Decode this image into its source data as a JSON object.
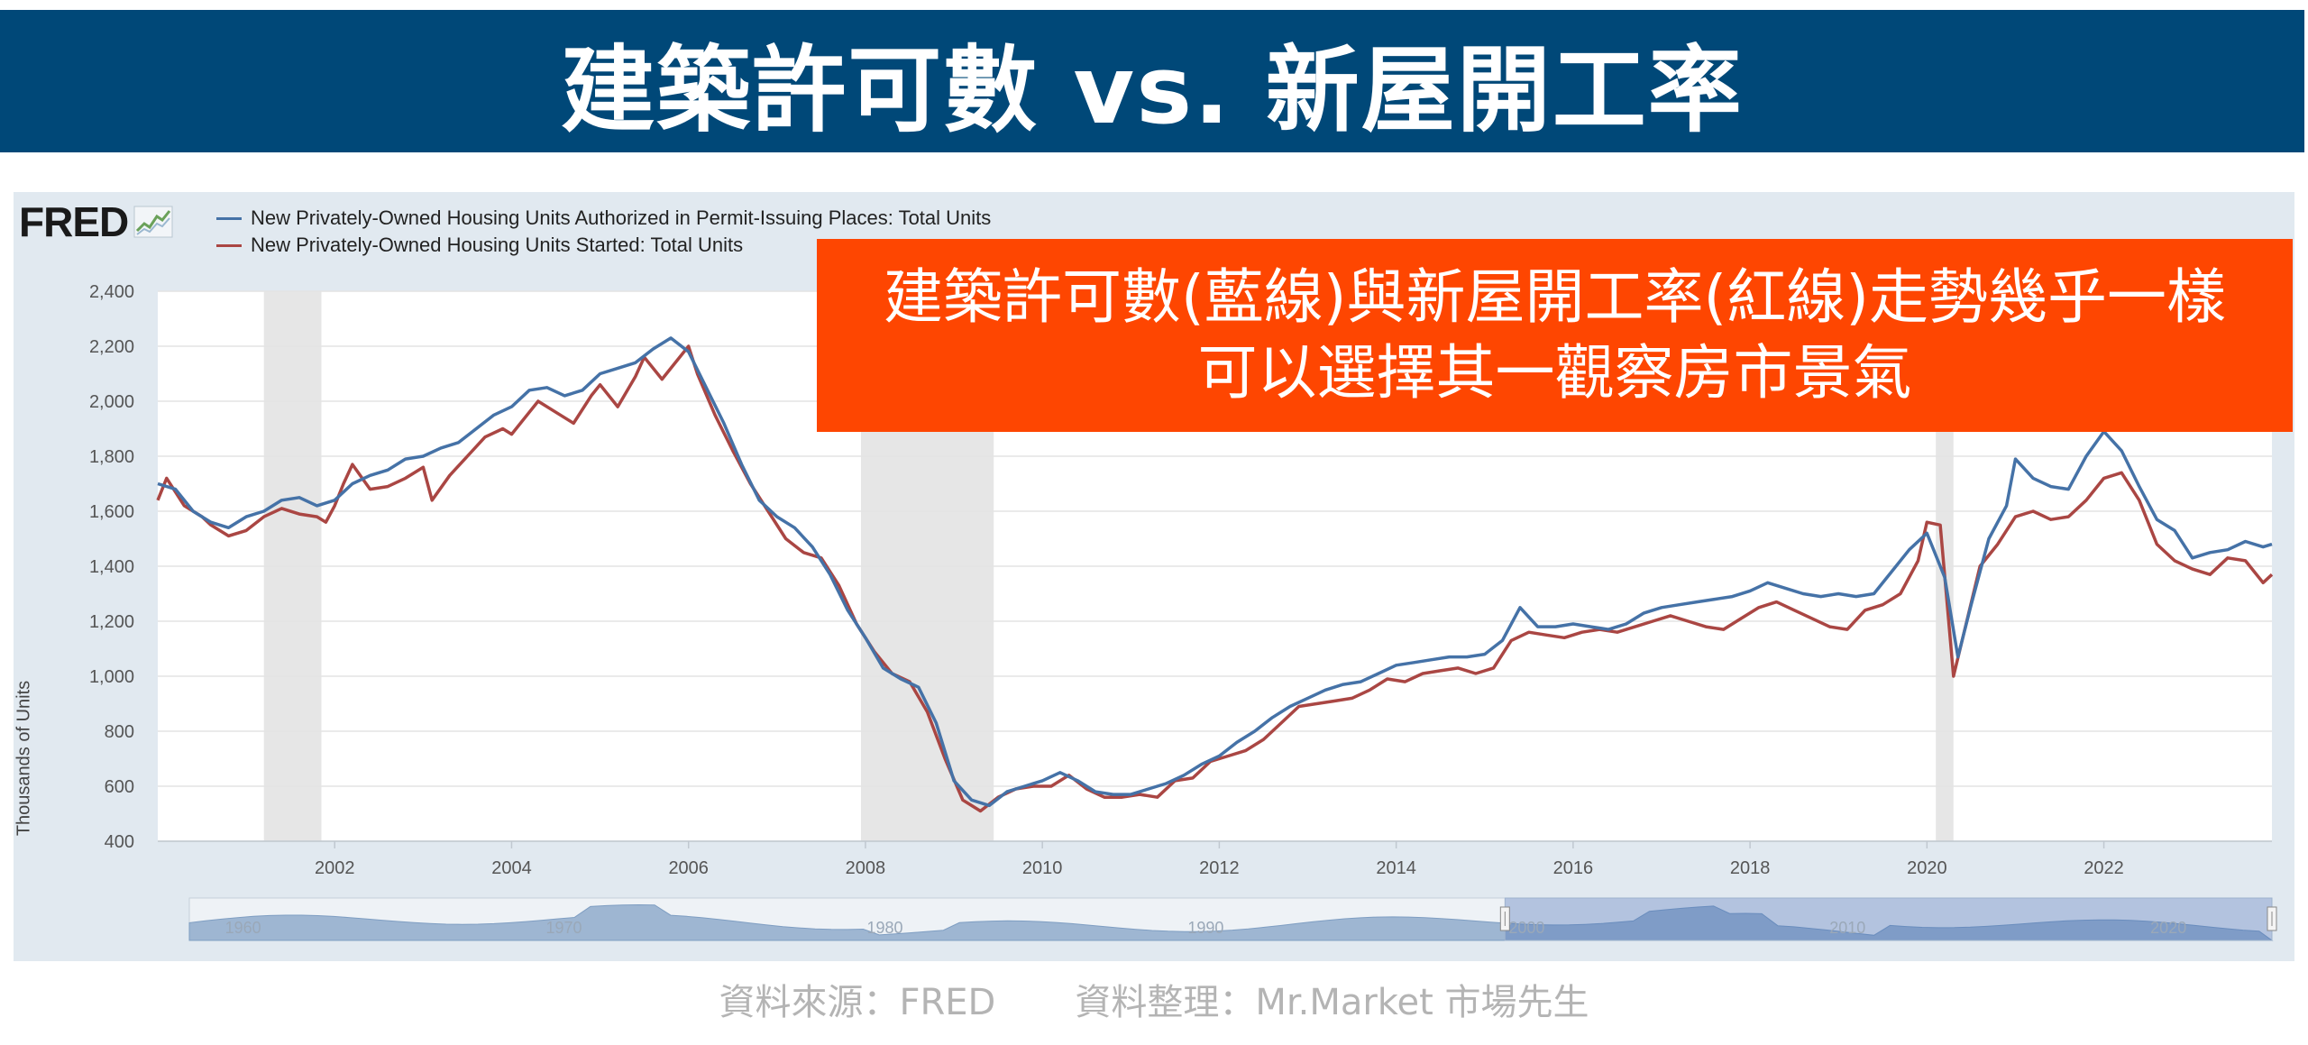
{
  "header": {
    "title": "建築許可數 vs. 新屋開工率"
  },
  "logo": {
    "text": "FRED"
  },
  "legend": [
    {
      "label": "New Privately-Owned Housing Units Authorized in Permit-Issuing Places: Total Units",
      "color": "#4572a7"
    },
    {
      "label": "New Privately-Owned Housing Units Started: Total Units",
      "color": "#aa4643"
    }
  ],
  "callout": {
    "line1": "建築許可數(藍線)與新屋開工率(紅線)走勢幾乎一樣",
    "line2": "可以選擇其一觀察房市景氣",
    "color": "#fe4601"
  },
  "footer": {
    "source": "資料來源：FRED",
    "compiled": "資料整理：Mr.Market 市場先生"
  },
  "chart_data": {
    "type": "line",
    "ylabel": "Thousands of Units",
    "ylim": [
      400,
      2400
    ],
    "xlim": [
      2000.0,
      2023.9
    ],
    "yticks": [
      "400",
      "600",
      "800",
      "1,000",
      "1,200",
      "1,400",
      "1,600",
      "1,800",
      "2,000",
      "2,200",
      "2,400"
    ],
    "xticks": [
      "2002",
      "2004",
      "2006",
      "2008",
      "2010",
      "2012",
      "2014",
      "2016",
      "2018",
      "2020",
      "2022"
    ],
    "grid": "horizontal",
    "recessions": [
      [
        2001.2,
        2001.85
      ],
      [
        2007.95,
        2009.45
      ],
      [
        2020.1,
        2020.3
      ]
    ],
    "navigator": {
      "labels": [
        "1960",
        "1970",
        "1980",
        "1990",
        "2000",
        "2010",
        "2020"
      ],
      "selected": [
        2000,
        2023.9
      ]
    },
    "series": [
      {
        "name": "New Privately-Owned Housing Units Authorized in Permit-Issuing Places: Total Units",
        "color": "#4572a7",
        "points": [
          [
            2000.0,
            1700
          ],
          [
            2000.2,
            1680
          ],
          [
            2000.4,
            1600
          ],
          [
            2000.6,
            1560
          ],
          [
            2000.8,
            1540
          ],
          [
            2001.0,
            1580
          ],
          [
            2001.2,
            1600
          ],
          [
            2001.4,
            1640
          ],
          [
            2001.6,
            1650
          ],
          [
            2001.8,
            1620
          ],
          [
            2002.0,
            1640
          ],
          [
            2002.2,
            1700
          ],
          [
            2002.4,
            1730
          ],
          [
            2002.6,
            1750
          ],
          [
            2002.8,
            1790
          ],
          [
            2003.0,
            1800
          ],
          [
            2003.2,
            1830
          ],
          [
            2003.4,
            1850
          ],
          [
            2003.6,
            1900
          ],
          [
            2003.8,
            1950
          ],
          [
            2004.0,
            1980
          ],
          [
            2004.2,
            2040
          ],
          [
            2004.4,
            2050
          ],
          [
            2004.6,
            2020
          ],
          [
            2004.8,
            2040
          ],
          [
            2005.0,
            2100
          ],
          [
            2005.2,
            2120
          ],
          [
            2005.4,
            2140
          ],
          [
            2005.6,
            2190
          ],
          [
            2005.8,
            2230
          ],
          [
            2006.0,
            2180
          ],
          [
            2006.2,
            2050
          ],
          [
            2006.4,
            1920
          ],
          [
            2006.6,
            1770
          ],
          [
            2006.8,
            1640
          ],
          [
            2007.0,
            1580
          ],
          [
            2007.2,
            1540
          ],
          [
            2007.4,
            1470
          ],
          [
            2007.6,
            1370
          ],
          [
            2007.8,
            1240
          ],
          [
            2008.0,
            1140
          ],
          [
            2008.2,
            1030
          ],
          [
            2008.4,
            990
          ],
          [
            2008.6,
            960
          ],
          [
            2008.8,
            830
          ],
          [
            2009.0,
            620
          ],
          [
            2009.2,
            550
          ],
          [
            2009.4,
            530
          ],
          [
            2009.6,
            580
          ],
          [
            2009.8,
            600
          ],
          [
            2010.0,
            620
          ],
          [
            2010.2,
            650
          ],
          [
            2010.4,
            620
          ],
          [
            2010.6,
            580
          ],
          [
            2010.8,
            570
          ],
          [
            2011.0,
            570
          ],
          [
            2011.2,
            590
          ],
          [
            2011.4,
            610
          ],
          [
            2011.6,
            640
          ],
          [
            2011.8,
            680
          ],
          [
            2012.0,
            710
          ],
          [
            2012.2,
            760
          ],
          [
            2012.4,
            800
          ],
          [
            2012.6,
            850
          ],
          [
            2012.8,
            890
          ],
          [
            2013.0,
            920
          ],
          [
            2013.2,
            950
          ],
          [
            2013.4,
            970
          ],
          [
            2013.6,
            980
          ],
          [
            2013.8,
            1010
          ],
          [
            2014.0,
            1040
          ],
          [
            2014.2,
            1050
          ],
          [
            2014.4,
            1060
          ],
          [
            2014.6,
            1070
          ],
          [
            2014.8,
            1070
          ],
          [
            2015.0,
            1080
          ],
          [
            2015.2,
            1130
          ],
          [
            2015.4,
            1250
          ],
          [
            2015.6,
            1180
          ],
          [
            2015.8,
            1180
          ],
          [
            2016.0,
            1190
          ],
          [
            2016.2,
            1180
          ],
          [
            2016.4,
            1170
          ],
          [
            2016.6,
            1190
          ],
          [
            2016.8,
            1230
          ],
          [
            2017.0,
            1250
          ],
          [
            2017.2,
            1260
          ],
          [
            2017.4,
            1270
          ],
          [
            2017.6,
            1280
          ],
          [
            2017.8,
            1290
          ],
          [
            2018.0,
            1310
          ],
          [
            2018.2,
            1340
          ],
          [
            2018.4,
            1320
          ],
          [
            2018.6,
            1300
          ],
          [
            2018.8,
            1290
          ],
          [
            2019.0,
            1300
          ],
          [
            2019.2,
            1290
          ],
          [
            2019.4,
            1300
          ],
          [
            2019.6,
            1380
          ],
          [
            2019.8,
            1460
          ],
          [
            2020.0,
            1520
          ],
          [
            2020.2,
            1360
          ],
          [
            2020.35,
            1070
          ],
          [
            2020.5,
            1260
          ],
          [
            2020.7,
            1500
          ],
          [
            2020.9,
            1620
          ],
          [
            2021.0,
            1790
          ],
          [
            2021.2,
            1720
          ],
          [
            2021.4,
            1690
          ],
          [
            2021.6,
            1680
          ],
          [
            2021.8,
            1800
          ],
          [
            2022.0,
            1890
          ],
          [
            2022.2,
            1820
          ],
          [
            2022.4,
            1690
          ],
          [
            2022.6,
            1570
          ],
          [
            2022.8,
            1530
          ],
          [
            2023.0,
            1430
          ],
          [
            2023.2,
            1450
          ],
          [
            2023.4,
            1460
          ],
          [
            2023.6,
            1490
          ],
          [
            2023.8,
            1470
          ],
          [
            2023.9,
            1480
          ]
        ]
      },
      {
        "name": "New Privately-Owned Housing Units Started: Total Units",
        "color": "#aa4643",
        "points": [
          [
            2000.0,
            1640
          ],
          [
            2000.1,
            1720
          ],
          [
            2000.3,
            1620
          ],
          [
            2000.5,
            1580
          ],
          [
            2000.6,
            1550
          ],
          [
            2000.8,
            1510
          ],
          [
            2001.0,
            1530
          ],
          [
            2001.2,
            1580
          ],
          [
            2001.4,
            1610
          ],
          [
            2001.6,
            1590
          ],
          [
            2001.8,
            1580
          ],
          [
            2001.9,
            1560
          ],
          [
            2002.0,
            1620
          ],
          [
            2002.1,
            1700
          ],
          [
            2002.2,
            1770
          ],
          [
            2002.4,
            1680
          ],
          [
            2002.6,
            1690
          ],
          [
            2002.8,
            1720
          ],
          [
            2003.0,
            1760
          ],
          [
            2003.1,
            1640
          ],
          [
            2003.3,
            1730
          ],
          [
            2003.5,
            1800
          ],
          [
            2003.7,
            1870
          ],
          [
            2003.9,
            1900
          ],
          [
            2004.0,
            1880
          ],
          [
            2004.2,
            1960
          ],
          [
            2004.3,
            2000
          ],
          [
            2004.5,
            1960
          ],
          [
            2004.7,
            1920
          ],
          [
            2004.9,
            2020
          ],
          [
            2005.0,
            2060
          ],
          [
            2005.2,
            1980
          ],
          [
            2005.4,
            2090
          ],
          [
            2005.5,
            2160
          ],
          [
            2005.7,
            2080
          ],
          [
            2005.8,
            2120
          ],
          [
            2006.0,
            2200
          ],
          [
            2006.1,
            2100
          ],
          [
            2006.3,
            1950
          ],
          [
            2006.5,
            1820
          ],
          [
            2006.7,
            1700
          ],
          [
            2006.9,
            1600
          ],
          [
            2007.1,
            1500
          ],
          [
            2007.3,
            1450
          ],
          [
            2007.5,
            1430
          ],
          [
            2007.7,
            1330
          ],
          [
            2007.9,
            1190
          ],
          [
            2008.1,
            1090
          ],
          [
            2008.3,
            1010
          ],
          [
            2008.5,
            980
          ],
          [
            2008.7,
            870
          ],
          [
            2008.9,
            700
          ],
          [
            2009.1,
            550
          ],
          [
            2009.3,
            510
          ],
          [
            2009.5,
            560
          ],
          [
            2009.7,
            590
          ],
          [
            2009.9,
            600
          ],
          [
            2010.1,
            600
          ],
          [
            2010.3,
            640
          ],
          [
            2010.5,
            590
          ],
          [
            2010.7,
            560
          ],
          [
            2010.9,
            560
          ],
          [
            2011.1,
            570
          ],
          [
            2011.3,
            560
          ],
          [
            2011.5,
            620
          ],
          [
            2011.7,
            630
          ],
          [
            2011.9,
            690
          ],
          [
            2012.1,
            710
          ],
          [
            2012.3,
            730
          ],
          [
            2012.5,
            770
          ],
          [
            2012.7,
            830
          ],
          [
            2012.9,
            890
          ],
          [
            2013.1,
            900
          ],
          [
            2013.3,
            910
          ],
          [
            2013.5,
            920
          ],
          [
            2013.7,
            950
          ],
          [
            2013.9,
            990
          ],
          [
            2014.1,
            980
          ],
          [
            2014.3,
            1010
          ],
          [
            2014.5,
            1020
          ],
          [
            2014.7,
            1030
          ],
          [
            2014.9,
            1010
          ],
          [
            2015.1,
            1030
          ],
          [
            2015.3,
            1130
          ],
          [
            2015.5,
            1160
          ],
          [
            2015.7,
            1150
          ],
          [
            2015.9,
            1140
          ],
          [
            2016.1,
            1160
          ],
          [
            2016.3,
            1170
          ],
          [
            2016.5,
            1160
          ],
          [
            2016.7,
            1180
          ],
          [
            2016.9,
            1200
          ],
          [
            2017.1,
            1220
          ],
          [
            2017.3,
            1200
          ],
          [
            2017.5,
            1180
          ],
          [
            2017.7,
            1170
          ],
          [
            2017.9,
            1210
          ],
          [
            2018.1,
            1250
          ],
          [
            2018.3,
            1270
          ],
          [
            2018.5,
            1240
          ],
          [
            2018.7,
            1210
          ],
          [
            2018.9,
            1180
          ],
          [
            2019.1,
            1170
          ],
          [
            2019.3,
            1240
          ],
          [
            2019.5,
            1260
          ],
          [
            2019.7,
            1300
          ],
          [
            2019.9,
            1420
          ],
          [
            2020.0,
            1560
          ],
          [
            2020.15,
            1550
          ],
          [
            2020.3,
            1000
          ],
          [
            2020.45,
            1200
          ],
          [
            2020.6,
            1400
          ],
          [
            2020.8,
            1480
          ],
          [
            2021.0,
            1580
          ],
          [
            2021.2,
            1600
          ],
          [
            2021.4,
            1570
          ],
          [
            2021.6,
            1580
          ],
          [
            2021.8,
            1640
          ],
          [
            2022.0,
            1720
          ],
          [
            2022.2,
            1740
          ],
          [
            2022.4,
            1640
          ],
          [
            2022.6,
            1480
          ],
          [
            2022.8,
            1420
          ],
          [
            2023.0,
            1390
          ],
          [
            2023.2,
            1370
          ],
          [
            2023.4,
            1430
          ],
          [
            2023.6,
            1420
          ],
          [
            2023.8,
            1340
          ],
          [
            2023.9,
            1370
          ]
        ]
      }
    ]
  }
}
